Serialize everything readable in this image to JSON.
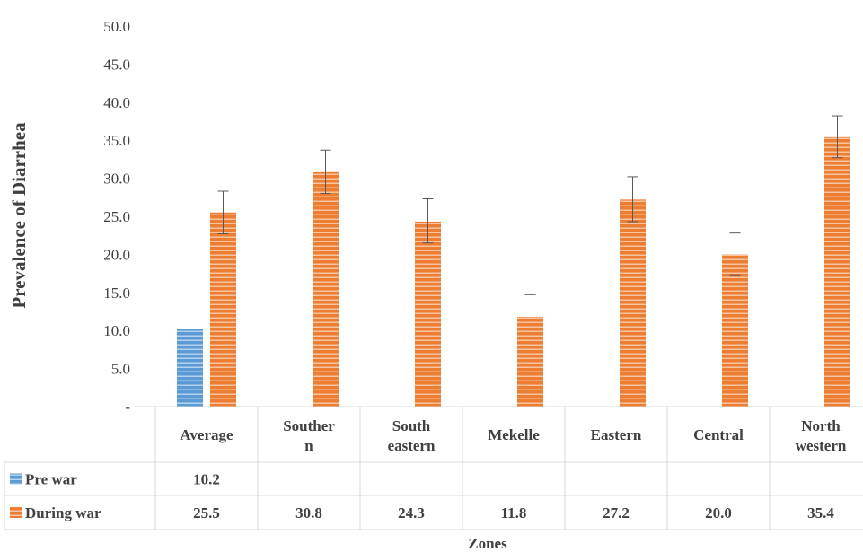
{
  "chart_data": {
    "type": "bar",
    "xlabel": "Zones",
    "ylabel": "Prevalence of Diarrhea",
    "ylim": [
      0,
      50
    ],
    "y_ticks": [
      "-",
      "5.0",
      "10.0",
      "15.0",
      "20.0",
      "25.0",
      "30.0",
      "35.0",
      "40.0",
      "45.0",
      "50.0"
    ],
    "categories": [
      [
        "Average"
      ],
      [
        "Souther",
        "n"
      ],
      [
        "South",
        "eastern"
      ],
      [
        "Mekelle"
      ],
      [
        "Eastern"
      ],
      [
        "Central"
      ],
      [
        "North",
        "western"
      ]
    ],
    "series": [
      {
        "name": "Pre war",
        "color": "#5b9bd5",
        "values": [
          10.2,
          null,
          null,
          null,
          null,
          null,
          null
        ],
        "labels": [
          "10.2",
          "",
          "",
          "",
          "",
          "",
          ""
        ],
        "errors": [
          null,
          null,
          null,
          null,
          null,
          null,
          null
        ]
      },
      {
        "name": "During war",
        "color": "#ed7d31",
        "values": [
          25.5,
          30.8,
          24.3,
          11.8,
          27.2,
          20.0,
          35.4
        ],
        "labels": [
          "25.5",
          "30.8",
          "24.3",
          "11.8",
          "27.2",
          "20.0",
          "35.4"
        ],
        "errors": [
          [
            22.7,
            28.3
          ],
          [
            28.0,
            33.7
          ],
          [
            21.5,
            27.3
          ],
          [
            null,
            14.7
          ],
          [
            24.3,
            30.2
          ],
          [
            17.3,
            22.8
          ],
          [
            32.7,
            38.2
          ]
        ]
      }
    ],
    "data_table": true,
    "fill_pattern": "horizontal-stripes"
  }
}
